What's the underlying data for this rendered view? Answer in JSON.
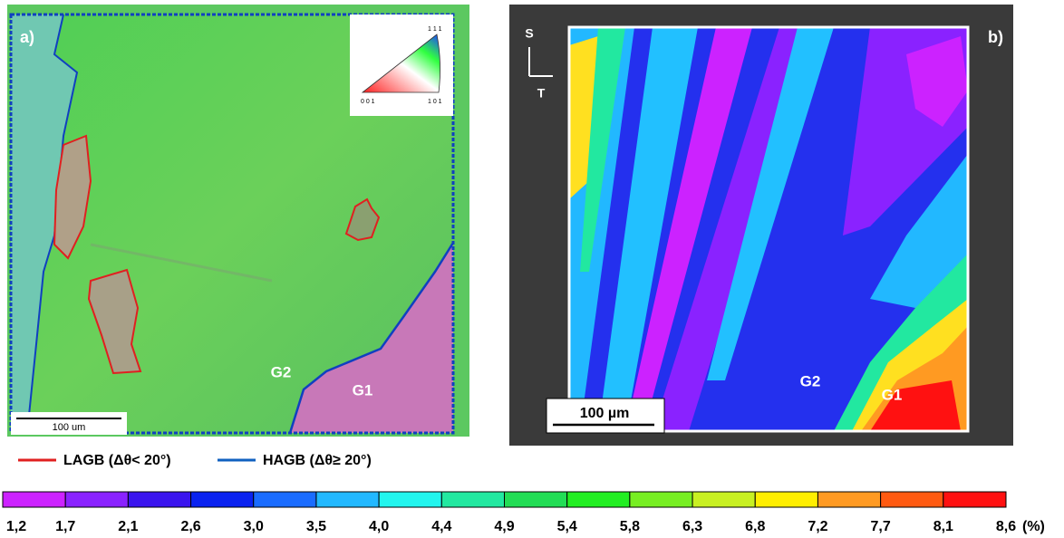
{
  "panel_a": {
    "label": "a)",
    "scale_bar": "100 um",
    "grain_1": "G1",
    "grain_2": "G2",
    "ipf_key": {
      "corner_001": "0 0 1",
      "corner_101": "1 0 1",
      "corner_111": "1 1 1"
    }
  },
  "panel_b": {
    "label": "b)",
    "scale_bar": "100 µm",
    "grain_1": "G1",
    "grain_2": "G2",
    "axis_s": "S",
    "axis_t": "T"
  },
  "legend": {
    "lagb": {
      "label": "LAGB (Δθ< 20°)",
      "color": "#e02020"
    },
    "hagb": {
      "label": "HAGB (Δθ≥ 20°)",
      "color": "#1060c0"
    }
  },
  "colorbar": {
    "labels": [
      "1,2",
      "1,7",
      "2,1",
      "2,6",
      "3,0",
      "3,5",
      "4,0",
      "4,4",
      "4,9",
      "5,4",
      "5,8",
      "6,3",
      "6,8",
      "7,2",
      "7,7",
      "8,1",
      "8,6"
    ],
    "unit": "(%)",
    "colors": [
      "#cc22ff",
      "#8a22ff",
      "#3a14ee",
      "#0a22f0",
      "#1a6cff",
      "#22b8ff",
      "#22f5ee",
      "#22e8a0",
      "#22dd55",
      "#22ee22",
      "#77ee22",
      "#c8f022",
      "#ffee00",
      "#ff9a22",
      "#ff5a11",
      "#ff1111"
    ]
  }
}
